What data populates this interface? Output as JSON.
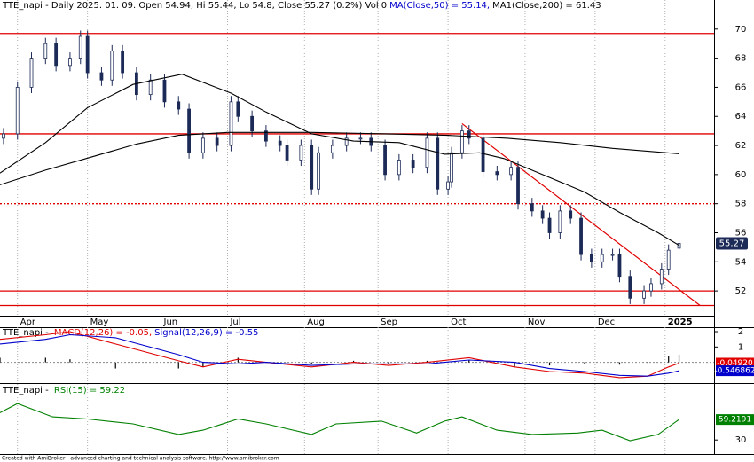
{
  "chart_data": [
    {
      "type": "candlestick",
      "title": "TTE_napi - Daily 2025. 01. 09. Open 54.94, Hi 55.44, Lo 54.8, Close 55.27 (0.2%) Vol 0",
      "x": [
        1,
        5,
        9,
        13,
        16,
        20,
        23,
        25,
        29,
        32,
        35,
        39,
        43,
        47,
        51,
        54,
        58,
        62,
        66,
        68,
        72,
        76,
        80,
        82,
        86,
        89,
        91,
        95,
        99,
        103,
        106,
        110,
        114,
        118,
        122,
        125,
        128,
        129,
        132,
        134,
        138,
        142,
        146,
        148,
        152,
        155,
        157,
        160,
        163,
        166,
        169,
        172,
        175,
        177,
        180,
        184,
        186,
        189,
        191,
        194
      ],
      "open": [
        62.5,
        62.8,
        66,
        68,
        69,
        67.5,
        68,
        69.5,
        67,
        66.5,
        68.5,
        67,
        65.5,
        66.5,
        65,
        64.5,
        61.5,
        62.5,
        62,
        65,
        64,
        63,
        62.3,
        62,
        61,
        62,
        59,
        61.5,
        62,
        62.5,
        62.5,
        62,
        60,
        61,
        60.5,
        62.5,
        59,
        59.5,
        61.5,
        63,
        62.5,
        60.2,
        60,
        60.5,
        58,
        57.5,
        57,
        56,
        57.5,
        57,
        54.5,
        54,
        54.5,
        54.5,
        53,
        51.5,
        52,
        52.5,
        53.5,
        54.94
      ],
      "high": [
        63.2,
        66.4,
        68.4,
        69.4,
        69.4,
        68.4,
        69.9,
        69.9,
        67.4,
        68.9,
        68.9,
        67.4,
        66.9,
        66.9,
        65.4,
        64.9,
        62.9,
        62.9,
        65.4,
        65.4,
        64.4,
        63.4,
        62.7,
        62.4,
        62.4,
        62.4,
        61.9,
        62.4,
        62.9,
        62.9,
        62.9,
        62.4,
        61.4,
        61.4,
        62.9,
        62.9,
        59.9,
        61.9,
        63.4,
        63.4,
        62.9,
        60.6,
        60.9,
        60.9,
        58.4,
        57.9,
        57.4,
        57.9,
        57.9,
        57.4,
        54.9,
        54.9,
        54.9,
        54.9,
        53.4,
        52.4,
        52.9,
        53.9,
        55.2,
        55.44
      ],
      "low": [
        62.1,
        62.4,
        65.6,
        67.6,
        67.1,
        67.1,
        67.6,
        66.6,
        66.1,
        66.1,
        66.6,
        65.1,
        65.1,
        64.6,
        64.1,
        61.1,
        61.1,
        61.6,
        61.6,
        63.6,
        62.6,
        61.9,
        61.6,
        60.6,
        60.6,
        58.6,
        58.6,
        61.1,
        61.6,
        62.1,
        61.6,
        59.6,
        59.6,
        60.1,
        60.1,
        58.6,
        58.6,
        59.1,
        61.1,
        62.1,
        59.8,
        59.6,
        59.6,
        57.6,
        57.1,
        56.6,
        55.6,
        55.6,
        56.6,
        54.1,
        53.6,
        53.6,
        54.1,
        52.6,
        51.1,
        51.1,
        51.6,
        52.1,
        53.1,
        54.8
      ],
      "close": [
        62.8,
        66,
        68,
        69,
        67.5,
        68,
        69.5,
        67,
        66.5,
        68.5,
        67,
        65.5,
        66.5,
        65,
        64.5,
        61.5,
        62.5,
        62,
        65,
        64,
        63,
        62.3,
        62,
        61,
        62,
        59,
        61.5,
        62,
        62.5,
        62.5,
        62,
        60,
        61,
        60.5,
        62.5,
        59,
        59.5,
        61.5,
        63,
        62.5,
        60.2,
        60,
        60.5,
        58,
        57.5,
        57,
        56,
        57.5,
        57,
        54.5,
        54,
        54.5,
        54.5,
        53,
        51.5,
        52,
        52.5,
        53.5,
        54.8,
        55.27
      ],
      "up_color": "#ffffff",
      "down_color": "#1c2a57",
      "edge_color": "#1c2a57",
      "series": [
        {
          "name": "MA(Close,50) = 55.14,",
          "label_color": "#0000cc",
          "color": "#000000",
          "x": [
            0,
            13,
            25,
            38,
            52,
            66,
            76,
            89,
            101,
            114,
            127,
            137,
            144,
            157,
            167,
            177,
            188,
            194
          ],
          "values": [
            60.1,
            62.2,
            64.6,
            66.2,
            66.9,
            65.6,
            64.3,
            62.8,
            62.3,
            62.2,
            61.4,
            61.5,
            61.1,
            59.8,
            58.8,
            57.4,
            56.0,
            55.14
          ]
        },
        {
          "name": "MA1(Close,200) = 61.43",
          "label_color": "#000000",
          "color": "#000000",
          "x": [
            0,
            13,
            26,
            39,
            51,
            65,
            89,
            110,
            128,
            145,
            160,
            175,
            194
          ],
          "values": [
            59.3,
            60.3,
            61.2,
            62.1,
            62.7,
            62.9,
            62.9,
            62.8,
            62.7,
            62.5,
            62.2,
            61.8,
            61.43
          ]
        }
      ],
      "hlines": [
        {
          "value": 69.7,
          "style": "solid"
        },
        {
          "value": 62.8,
          "style": "solid"
        },
        {
          "value": 58.0,
          "style": "dotted"
        },
        {
          "value": 52.0,
          "style": "solid"
        },
        {
          "value": 51.0,
          "style": "solid"
        }
      ],
      "hline_color": "#e00000",
      "trend": {
        "x": [
          132,
          200
        ],
        "y": [
          63.5,
          51.0
        ],
        "color": "#e00000"
      },
      "xlim": [
        0,
        204
      ],
      "ylim": [
        50.3,
        72
      ],
      "xticks": [
        {
          "value": 5,
          "label": "Apr"
        },
        {
          "value": 25,
          "label": "May"
        },
        {
          "value": 46,
          "label": "Jun"
        },
        {
          "value": 65,
          "label": "Jul"
        },
        {
          "value": 87,
          "label": "Aug"
        },
        {
          "value": 108,
          "label": "Sep"
        },
        {
          "value": 128,
          "label": "Oct"
        },
        {
          "value": 150,
          "label": "Nov"
        },
        {
          "value": 170,
          "label": "Dec"
        },
        {
          "value": 190,
          "label": "2025"
        }
      ],
      "yticks": [
        52,
        54,
        56,
        58,
        60,
        62,
        64,
        66,
        68,
        70
      ],
      "grid": true
    },
    {
      "type": "line",
      "title": "TTE_napi - ",
      "xlim": [
        0,
        204
      ],
      "ylim": [
        -1.35,
        2.29
      ],
      "yticks": [
        1,
        2
      ],
      "series": [
        {
          "name": "MACD(12,26) = -0.05,",
          "color": "#e00000",
          "x": [
            0,
            13,
            20,
            33,
            51,
            58,
            68,
            76,
            89,
            101,
            111,
            122,
            134,
            147,
            157,
            167,
            177,
            185,
            191,
            194
          ],
          "values": [
            1.5,
            1.8,
            2.0,
            1.2,
            0.1,
            -0.3,
            0.2,
            0.0,
            -0.3,
            0.0,
            -0.2,
            0.0,
            0.3,
            -0.3,
            -0.6,
            -0.7,
            -1.0,
            -0.9,
            -0.3,
            -0.05
          ]
        },
        {
          "name": "Signal(12,26,9) = -0.55",
          "color": "#0000cc",
          "x": [
            0,
            13,
            20,
            33,
            51,
            58,
            68,
            76,
            89,
            101,
            111,
            122,
            134,
            147,
            157,
            167,
            177,
            185,
            191,
            194
          ],
          "values": [
            1.2,
            1.5,
            1.8,
            1.6,
            0.5,
            0.0,
            -0.1,
            0.0,
            -0.2,
            -0.1,
            -0.1,
            -0.1,
            0.15,
            0.0,
            -0.4,
            -0.6,
            -0.85,
            -0.9,
            -0.7,
            -0.55
          ]
        }
      ],
      "histogram": {
        "color": "#000000",
        "x": [
          0,
          13,
          20,
          33,
          51,
          58,
          68,
          76,
          89,
          101,
          111,
          122,
          134,
          147,
          157,
          167,
          177,
          185,
          191,
          194
        ],
        "values": [
          0.3,
          0.3,
          0.2,
          -0.4,
          -0.4,
          -0.3,
          0.3,
          0,
          -0.1,
          0.1,
          -0.1,
          0.1,
          0.15,
          -0.3,
          -0.2,
          -0.1,
          -0.15,
          0,
          0.4,
          0.5
        ]
      },
      "tags": [
        {
          "value": -0.0492,
          "label": "-0.04920",
          "color": "#e00000"
        },
        {
          "value": -0.546862,
          "label": "-0.546862",
          "color": "#0000cc"
        }
      ]
    },
    {
      "type": "line",
      "title": "TTE_napi - ",
      "xlim": [
        0,
        204
      ],
      "ylim": [
        10,
        110
      ],
      "yticks": [
        30
      ],
      "series": [
        {
          "name": "RSI(15) = 59.22",
          "color": "#008000",
          "x": [
            0,
            5,
            15,
            25,
            38,
            51,
            58,
            68,
            76,
            89,
            96,
            109,
            119,
            127,
            132,
            142,
            152,
            165,
            172,
            180,
            188,
            194
          ],
          "values": [
            69,
            82,
            63,
            60,
            53,
            38,
            44,
            60,
            53,
            38,
            53,
            57,
            40,
            57,
            63,
            44,
            38,
            40,
            44,
            29,
            38,
            59.22
          ]
        }
      ],
      "tags": [
        {
          "value": 59.2191,
          "label": "59.2191",
          "color": "#008000"
        }
      ]
    }
  ],
  "footer": "Created with AmiBroker - advanced charting and technical analysis software. http://www.amibroker.com"
}
